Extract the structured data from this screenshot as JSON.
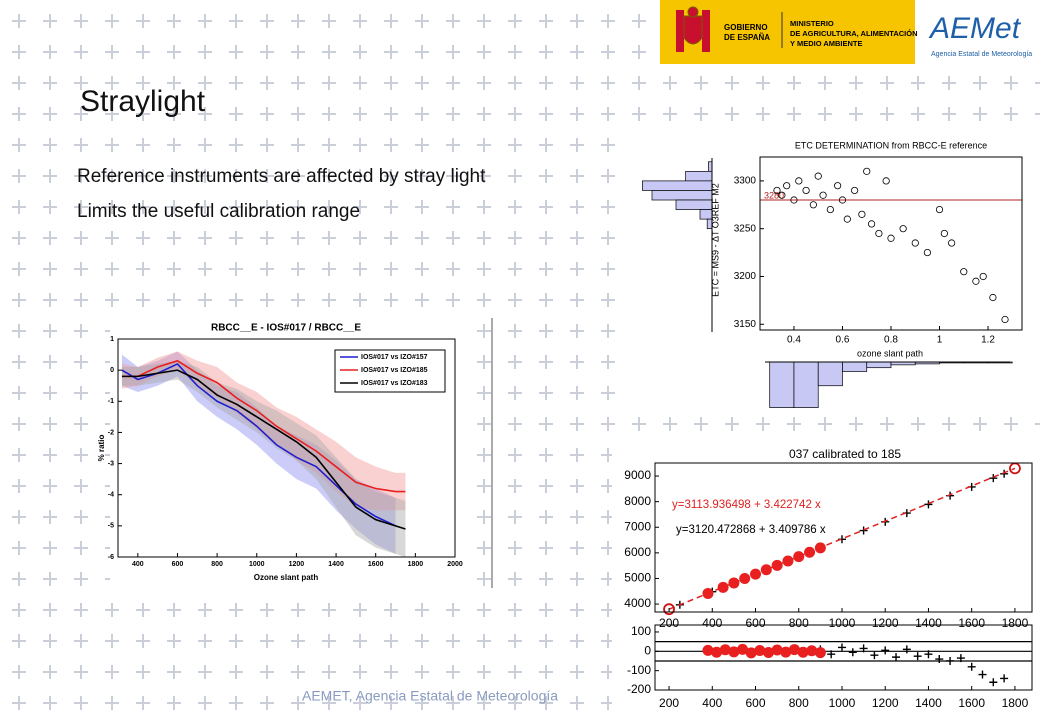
{
  "header": {
    "gov": [
      "GOBIERNO",
      "DE ESPAÑA"
    ],
    "ministry": [
      "MINISTERIO",
      "DE AGRICULTURA, ALIMENTACIÓN",
      "Y MEDIO AMBIENTE"
    ],
    "aemet_logo": "AEMet",
    "aemet_name": "Agencia Estatal de Meteorología"
  },
  "title": "Straylight",
  "bullets": [
    "Reference instruments are affected by stray light",
    "Limits the useful calibration range"
  ],
  "footer": "AEMET, Agencia Estatal de Meteorología",
  "figures": [
    {
      "title": "RBCC__E - IOS#017 / RBCC__E",
      "xlabel": "Ozone slant path",
      "ylabel": "% ratio",
      "xlim": [
        300,
        2000
      ],
      "ylim": [
        -6,
        1
      ],
      "xticks": [
        400,
        600,
        800,
        1000,
        1200,
        1400,
        1600,
        1800,
        2000
      ],
      "yticks": [
        -6,
        -5,
        -4,
        -3,
        -2,
        -1,
        0,
        1
      ],
      "x": [
        320,
        400,
        500,
        600,
        700,
        800,
        900,
        1000,
        1100,
        1200,
        1300,
        1400,
        1500,
        1600,
        1700,
        1750
      ],
      "series": [
        {
          "name": "IOS#017 vs IZO#157",
          "color": "#1f1fd0",
          "band_color": "#8f8ff0",
          "values": [
            0,
            -0.3,
            -0.1,
            0.2,
            -0.5,
            -1,
            -1.3,
            -1.8,
            -2.4,
            -2.8,
            -3.1,
            -3.7,
            -4.3,
            -4.7,
            -5.0,
            null
          ],
          "spread": [
            0.5,
            0.4,
            0.4,
            0.4,
            0.5,
            0.5,
            0.6,
            0.6,
            0.6,
            0.7,
            0.7,
            0.8,
            0.8,
            0.9,
            0.9,
            null
          ]
        },
        {
          "name": "IOS#017 vs IZO#185",
          "color": "#e82020",
          "band_color": "#f59a9a",
          "values": [
            -0.2,
            -0.2,
            0.1,
            0.3,
            -0.1,
            -0.4,
            -0.9,
            -1.3,
            -1.8,
            -2.2,
            -2.6,
            -3.1,
            -3.6,
            -3.8,
            -3.9,
            -3.9
          ],
          "spread": [
            0.4,
            0.3,
            0.3,
            0.3,
            0.4,
            0.5,
            0.5,
            0.6,
            0.6,
            0.7,
            0.7,
            0.8,
            0.8,
            0.7,
            0.6,
            0.6
          ]
        },
        {
          "name": "IOS#017 vs IZO#183",
          "color": "#000000",
          "band_color": "#a8a8a8",
          "values": [
            -0.2,
            -0.2,
            -0.1,
            0,
            -0.3,
            -0.8,
            -1.1,
            -1.5,
            -1.9,
            -2.3,
            -2.8,
            -3.6,
            -4.4,
            -4.8,
            -5.0,
            -5.1
          ],
          "spread": [
            0.3,
            0.3,
            0.3,
            0.3,
            0.4,
            0.4,
            0.5,
            0.5,
            0.6,
            0.6,
            0.7,
            0.8,
            0.9,
            0.9,
            0.9,
            0.9
          ]
        }
      ]
    },
    {
      "title": "ETC DETERMINATION from RBCC-E reference",
      "xlabel": "ozone slant path",
      "ylabel": "ETC = MS9 - ΔT O3REF M2",
      "xlim": [
        0.26,
        1.34
      ],
      "ylim": [
        3144,
        3325
      ],
      "xticks": [
        0.4,
        0.6,
        0.8,
        1,
        1.2
      ],
      "yticks": [
        3150,
        3200,
        3250,
        3300
      ],
      "x": [
        0.33,
        0.35,
        0.37,
        0.4,
        0.42,
        0.45,
        0.48,
        0.5,
        0.52,
        0.55,
        0.58,
        0.6,
        0.62,
        0.65,
        0.68,
        0.7,
        0.72,
        0.75,
        0.78,
        0.8,
        0.85,
        0.9,
        0.95,
        1.0,
        1.02,
        1.05,
        1.1,
        1.15,
        1.18,
        1.22,
        1.27
      ],
      "y": [
        3290,
        3285,
        3295,
        3280,
        3300,
        3290,
        3275,
        3305,
        3285,
        3270,
        3295,
        3280,
        3260,
        3290,
        3265,
        3310,
        3255,
        3245,
        3300,
        3240,
        3250,
        3235,
        3225,
        3270,
        3245,
        3235,
        3205,
        3195,
        3200,
        3178,
        3155
      ],
      "reference": {
        "value": 3280,
        "label": "3280",
        "color": "#b22222"
      },
      "hist_color": "#c8c8f5",
      "y_hist": {
        "edges": [
          3320,
          3310,
          3300,
          3290,
          3280,
          3270,
          3260,
          3250
        ],
        "counts": [
          3,
          22,
          58,
          50,
          30,
          10,
          4
        ]
      },
      "x_hist": {
        "edges": [
          0.3,
          0.4,
          0.5,
          0.6,
          0.7,
          0.8,
          0.9,
          1.0,
          1.1,
          1.2,
          1.3
        ],
        "counts": [
          48,
          48,
          25,
          10,
          6,
          3,
          2,
          1,
          1,
          1
        ]
      }
    },
    {
      "title": "037 calibrated to 185",
      "xlim": [
        135,
        1879
      ],
      "xticks": [
        200,
        400,
        600,
        800,
        1000,
        1200,
        1400,
        1600,
        1800
      ],
      "top": {
        "ylim": [
          3690,
          9510
        ],
        "yticks": [
          4000,
          5000,
          6000,
          7000,
          8000,
          9000
        ],
        "fits": [
          {
            "label": "y=3113.936498 + 3.422742 x",
            "color": "#e02020"
          },
          {
            "label": "y=3120.472868 + 3.409786 x",
            "color": "#000000"
          }
        ],
        "black": {
          "x": [
            250,
            400,
            500,
            600,
            700,
            800,
            900,
            1000,
            1100,
            1200,
            1300,
            1400,
            1500,
            1600,
            1700,
            1750
          ],
          "y": [
            3972,
            4484,
            4825,
            5166,
            5507,
            5848,
            6189,
            6530,
            6871,
            7212,
            7553,
            7894,
            8235,
            8576,
            8917,
            9088
          ]
        },
        "red": {
          "x": [
            380,
            450,
            500,
            550,
            600,
            650,
            700,
            750,
            800,
            850,
            900
          ],
          "y": [
            4415,
            4654,
            4825,
            4997,
            5168,
            5339,
            5510,
            5681,
            5852,
            6023,
            6195
          ]
        },
        "endpoints": {
          "x": [
            200,
            1800
          ],
          "y": [
            3800,
            9300
          ]
        }
      },
      "bottom": {
        "ylim": [
          -200,
          136
        ],
        "yticks": [
          -200,
          -100,
          0,
          100
        ],
        "ref_lines": [
          50,
          0,
          -50
        ],
        "red": {
          "x": [
            380,
            420,
            460,
            500,
            540,
            580,
            620,
            660,
            700,
            740,
            780,
            820,
            860,
            900
          ],
          "y": [
            5,
            -5,
            8,
            -3,
            10,
            -8,
            4,
            -6,
            7,
            -4,
            9,
            -5,
            3,
            -7
          ]
        },
        "black": {
          "x": [
            900,
            950,
            1000,
            1050,
            1100,
            1150,
            1200,
            1250,
            1300,
            1350,
            1400,
            1450,
            1500,
            1550,
            1600,
            1650,
            1700,
            1750
          ],
          "y": [
            10,
            -15,
            20,
            -5,
            15,
            -20,
            5,
            -30,
            10,
            -25,
            -15,
            -40,
            -50,
            -35,
            -80,
            -120,
            -160,
            -140
          ]
        }
      }
    }
  ]
}
